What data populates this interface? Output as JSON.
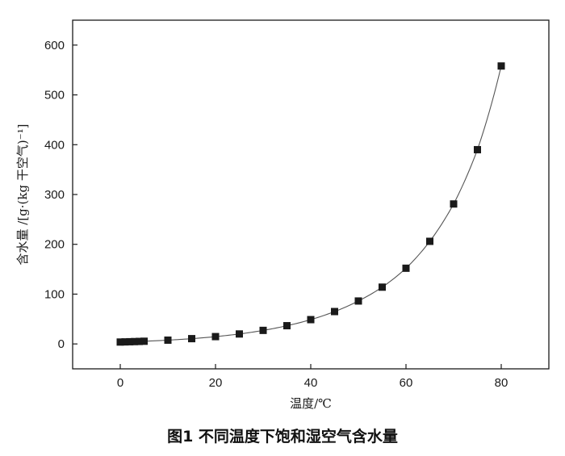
{
  "caption": "图1  不同温度下饱和湿空气含水量",
  "chart_data": {
    "type": "scatter",
    "xlabel": "温度/℃",
    "ylabel": "含水量 /[g·(kg  干空气)⁻¹]",
    "xlim": [
      -10,
      90
    ],
    "ylim": [
      -50,
      650
    ],
    "xticks": [
      0,
      20,
      40,
      60,
      80
    ],
    "yticks": [
      0,
      100,
      200,
      300,
      400,
      500,
      600
    ],
    "grid": false,
    "series": [
      {
        "x": [
          0,
          1,
          2,
          3,
          4,
          5,
          10,
          15,
          20,
          25,
          30,
          35,
          40,
          45,
          50,
          55,
          60,
          65,
          70,
          75,
          80
        ],
        "y": [
          3.8,
          4.1,
          4.4,
          4.7,
          5.0,
          5.4,
          7.6,
          10.6,
          14.7,
          20.0,
          27.2,
          36.6,
          48.8,
          65.0,
          86.2,
          114.0,
          152.0,
          206.0,
          281.0,
          390.0,
          558.0
        ],
        "marker": "square",
        "line": true,
        "color": "#1a1a1a"
      }
    ]
  }
}
